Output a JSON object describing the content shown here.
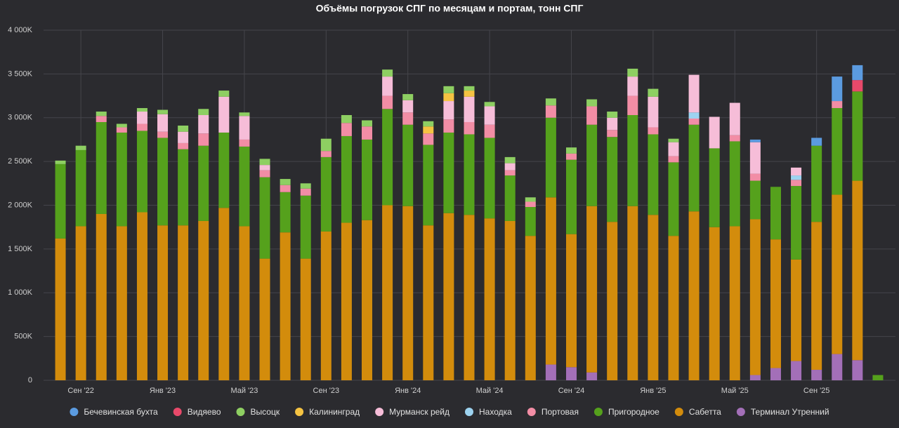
{
  "chart_data": {
    "type": "stacked-bar",
    "title": "Объёмы погрузок СПГ по месяцам и портам, тонн СПГ",
    "categories": [
      null,
      "Сен '22",
      null,
      null,
      null,
      "Янв '23",
      null,
      null,
      null,
      "Май '23",
      null,
      null,
      null,
      "Сен '23",
      null,
      null,
      null,
      "Янв '24",
      null,
      null,
      null,
      "Май '24",
      null,
      null,
      null,
      "Сен '24",
      null,
      null,
      null,
      "Янв '25",
      null,
      null,
      null,
      "Май '25",
      null,
      null,
      null,
      "Сен '25",
      null,
      null,
      null
    ],
    "ylim": [
      0,
      4000000
    ],
    "yticks": [
      0,
      {
        "value": 500000,
        "label": "500K"
      },
      {
        "value": 1000000,
        "label": "1 000K"
      },
      {
        "value": 1500000,
        "label": "1 500K"
      },
      {
        "value": 2000000,
        "label": "2 000K"
      },
      {
        "value": 2500000,
        "label": "2 500K"
      },
      {
        "value": 3000000,
        "label": "3 000K"
      },
      {
        "value": 3500000,
        "label": "3 500K"
      },
      {
        "value": 4000000,
        "label": "4 000K"
      }
    ],
    "grid": true,
    "series": [
      {
        "name": "Бечевинская бухта",
        "color": "#5b9be0",
        "values": [
          0,
          0,
          0,
          0,
          0,
          0,
          0,
          0,
          0,
          0,
          0,
          0,
          0,
          0,
          0,
          0,
          0,
          0,
          0,
          0,
          0,
          0,
          0,
          0,
          0,
          0,
          0,
          0,
          0,
          0,
          0,
          0,
          0,
          0,
          30000,
          0,
          0,
          90000,
          280000,
          170000,
          0
        ]
      },
      {
        "name": "Видяево",
        "color": "#e8496a",
        "values": [
          0,
          0,
          0,
          0,
          0,
          0,
          0,
          0,
          0,
          0,
          0,
          0,
          0,
          0,
          0,
          0,
          0,
          0,
          0,
          0,
          0,
          0,
          0,
          0,
          0,
          0,
          0,
          0,
          0,
          0,
          0,
          0,
          0,
          0,
          0,
          0,
          0,
          0,
          0,
          130000,
          0
        ]
      },
      {
        "name": "Высоцк",
        "color": "#8ecf62",
        "values": [
          40000,
          50000,
          50000,
          40000,
          40000,
          50000,
          70000,
          70000,
          70000,
          40000,
          70000,
          70000,
          60000,
          140000,
          90000,
          70000,
          80000,
          70000,
          60000,
          80000,
          50000,
          50000,
          70000,
          50000,
          80000,
          70000,
          80000,
          70000,
          90000,
          90000,
          40000,
          0,
          0,
          0,
          0,
          0,
          0,
          0,
          0,
          0,
          0
        ]
      },
      {
        "name": "Калининград",
        "color": "#f5c342",
        "values": [
          0,
          0,
          0,
          0,
          0,
          0,
          0,
          0,
          0,
          0,
          0,
          0,
          0,
          0,
          0,
          0,
          0,
          0,
          80000,
          90000,
          70000,
          0,
          0,
          0,
          0,
          0,
          0,
          0,
          0,
          0,
          0,
          0,
          0,
          0,
          0,
          0,
          0,
          0,
          0,
          0,
          0
        ]
      },
      {
        "name": "Мурманск рейд",
        "color": "#f6bdd8",
        "values": [
          0,
          0,
          0,
          0,
          140000,
          200000,
          130000,
          210000,
          410000,
          270000,
          60000,
          0,
          0,
          0,
          0,
          0,
          220000,
          140000,
          0,
          210000,
          290000,
          210000,
          80000,
          0,
          0,
          0,
          0,
          140000,
          220000,
          350000,
          160000,
          430000,
          360000,
          370000,
          360000,
          0,
          90000,
          0,
          0,
          0,
          0
        ]
      },
      {
        "name": "Находка",
        "color": "#9dd3f0",
        "values": [
          0,
          0,
          0,
          0,
          0,
          0,
          0,
          0,
          0,
          0,
          0,
          0,
          0,
          0,
          0,
          0,
          0,
          0,
          0,
          0,
          0,
          0,
          0,
          0,
          0,
          0,
          0,
          0,
          0,
          0,
          0,
          70000,
          0,
          0,
          0,
          0,
          50000,
          0,
          0,
          0,
          0
        ]
      },
      {
        "name": "Портовая",
        "color": "#f28da5",
        "values": [
          0,
          0,
          70000,
          60000,
          80000,
          70000,
          70000,
          140000,
          0,
          80000,
          80000,
          80000,
          80000,
          70000,
          150000,
          150000,
          150000,
          140000,
          130000,
          150000,
          140000,
          150000,
          60000,
          60000,
          140000,
          70000,
          210000,
          80000,
          220000,
          80000,
          70000,
          70000,
          0,
          70000,
          80000,
          0,
          70000,
          0,
          80000,
          0,
          0
        ]
      },
      {
        "name": "Пригородное",
        "color": "#55a11c",
        "values": [
          850000,
          870000,
          1050000,
          1070000,
          930000,
          1000000,
          870000,
          860000,
          860000,
          910000,
          930000,
          460000,
          720000,
          850000,
          990000,
          920000,
          1100000,
          930000,
          920000,
          920000,
          920000,
          920000,
          520000,
          330000,
          910000,
          850000,
          930000,
          970000,
          1040000,
          920000,
          840000,
          990000,
          900000,
          970000,
          440000,
          600000,
          840000,
          870000,
          990000,
          1020000,
          60000
        ]
      },
      {
        "name": "Сабетта",
        "color": "#d38c0c",
        "values": [
          1620000,
          1760000,
          1900000,
          1760000,
          1920000,
          1770000,
          1770000,
          1820000,
          1970000,
          1760000,
          1390000,
          1690000,
          1390000,
          1700000,
          1800000,
          1830000,
          2000000,
          1990000,
          1770000,
          1910000,
          1890000,
          1850000,
          1820000,
          1650000,
          1910000,
          1520000,
          1900000,
          1810000,
          1990000,
          1890000,
          1650000,
          1930000,
          1750000,
          1760000,
          1780000,
          1470000,
          1160000,
          1690000,
          1820000,
          2050000,
          0
        ]
      },
      {
        "name": "Терминал Утренний",
        "color": "#a36fb8",
        "values": [
          0,
          0,
          0,
          0,
          0,
          0,
          0,
          0,
          0,
          0,
          0,
          0,
          0,
          0,
          0,
          0,
          0,
          0,
          0,
          0,
          0,
          0,
          0,
          0,
          180000,
          150000,
          90000,
          0,
          0,
          0,
          0,
          0,
          0,
          0,
          60000,
          140000,
          220000,
          120000,
          300000,
          230000,
          0
        ]
      }
    ]
  }
}
